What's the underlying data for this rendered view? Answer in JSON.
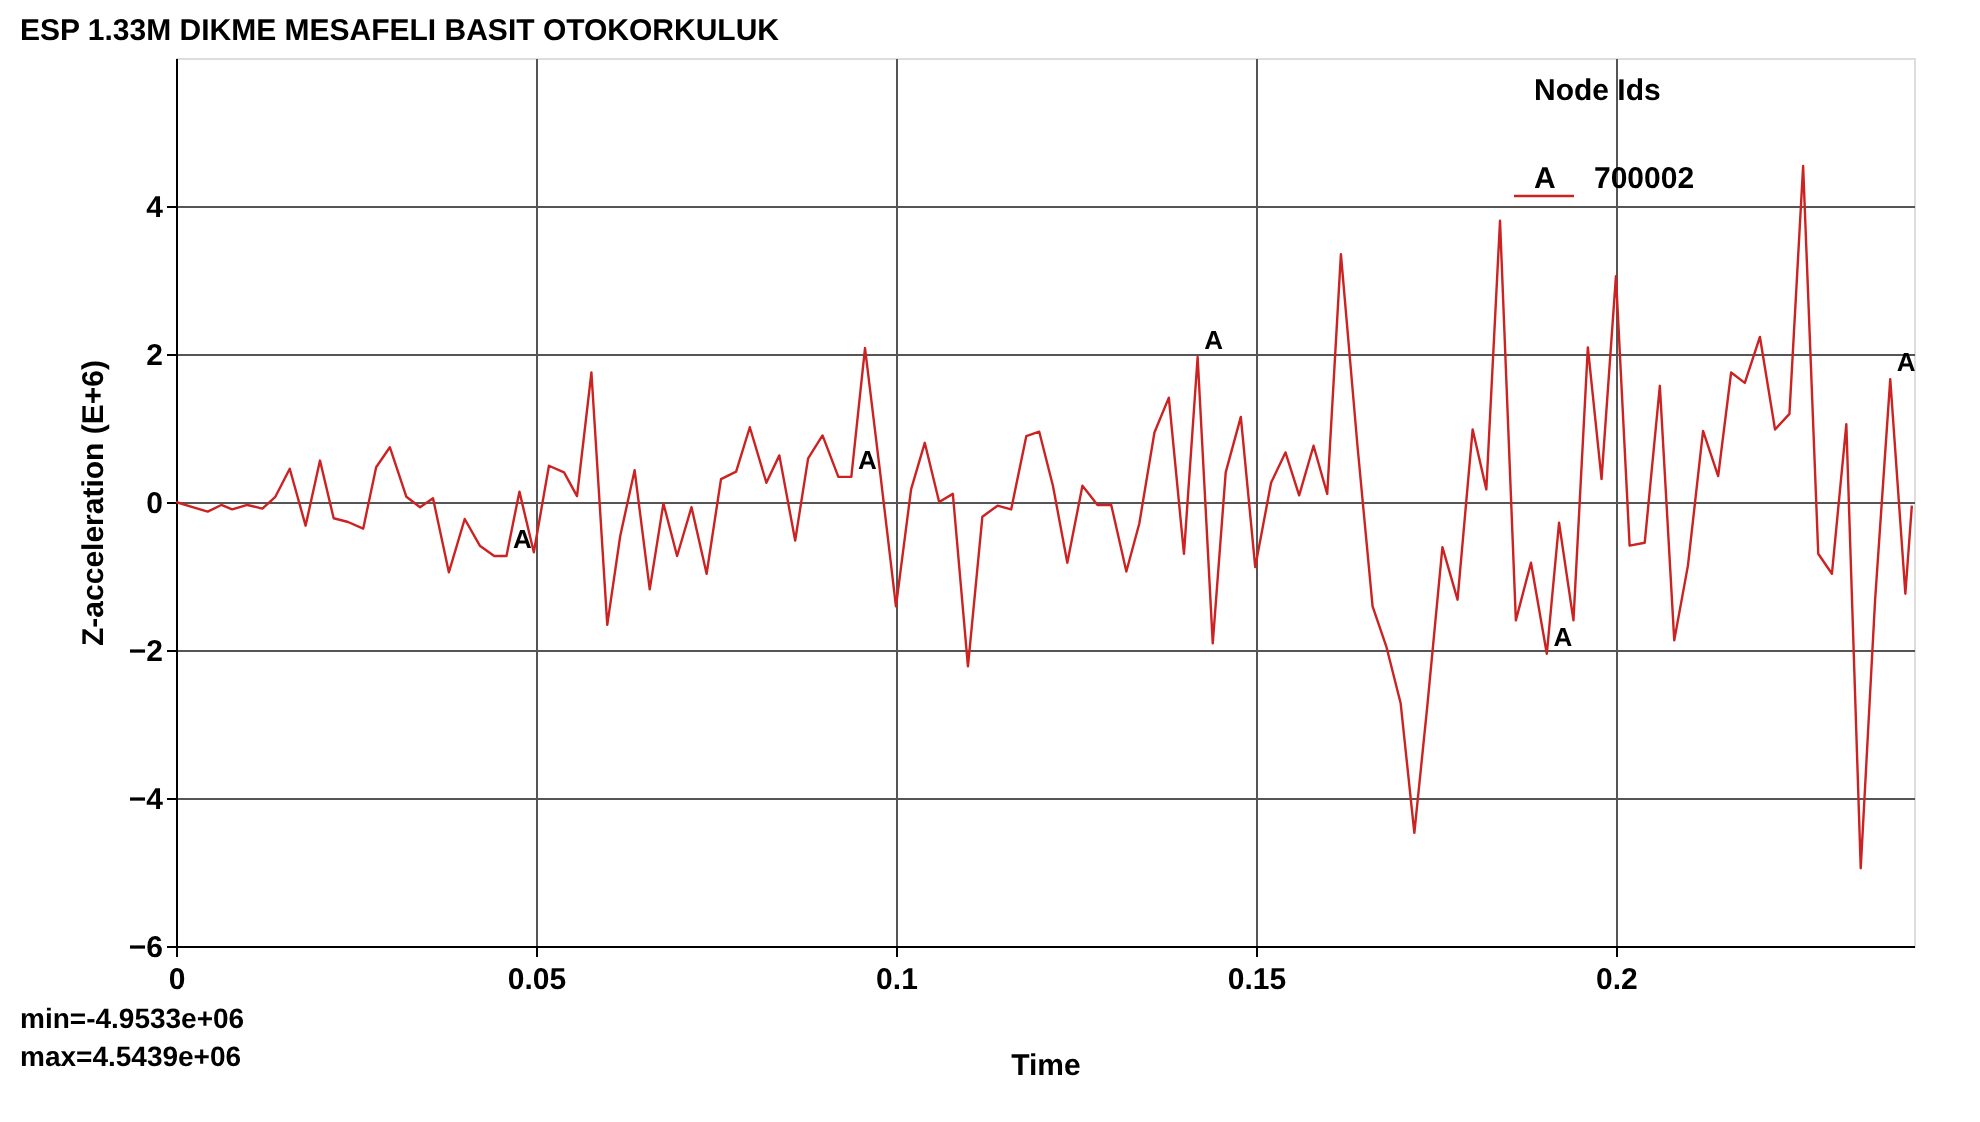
{
  "chart_data": {
    "type": "line",
    "title": "ESP 1.33M DIKME MESAFELI BASIT OTOKORKULUK",
    "xlabel": "Time",
    "ylabel": "Z-acceleration (E+6)",
    "legend_title": "Node Ids",
    "legend": "top right",
    "grid": true,
    "line_style": "solid",
    "xlim": [
      0,
      0.2414
    ],
    "ylim": [
      -6,
      6
    ],
    "xticks": [
      0,
      0.05,
      0.1,
      0.15,
      0.2
    ],
    "yticks": [
      -6,
      -4,
      -2,
      0,
      2,
      4
    ],
    "x": [
      0,
      0.0023,
      0.0044,
      0.0063,
      0.0078,
      0.0099,
      0.012,
      0.0138,
      0.0158,
      0.018,
      0.02,
      0.0219,
      0.0239,
      0.026,
      0.0278,
      0.0297,
      0.032,
      0.0339,
      0.0357,
      0.0379,
      0.0401,
      0.0422,
      0.0442,
      0.0459,
      0.0477,
      0.0497,
      0.0518,
      0.0539,
      0.0557,
      0.0577,
      0.0599,
      0.0617,
      0.0637,
      0.0658,
      0.0677,
      0.0696,
      0.0716,
      0.0737,
      0.0757,
      0.0778,
      0.0797,
      0.082,
      0.0838,
      0.086,
      0.0878,
      0.0898,
      0.092,
      0.0938,
      0.0957,
      0.0978,
      0.1,
      0.1021,
      0.104,
      0.106,
      0.1079,
      0.11,
      0.112,
      0.1141,
      0.116,
      0.1181,
      0.1199,
      0.1218,
      0.1238,
      0.1259,
      0.128,
      0.1299,
      0.132,
      0.1338,
      0.1359,
      0.1379,
      0.14,
      0.1419,
      0.144,
      0.1458,
      0.1479,
      0.1499,
      0.1521,
      0.1541,
      0.156,
      0.158,
      0.1599,
      0.1618,
      0.1641,
      0.1662,
      0.1681,
      0.1701,
      0.172,
      0.1738,
      0.1759,
      0.178,
      0.1801,
      0.182,
      0.1839,
      0.1861,
      0.1882,
      0.1904,
      0.1921,
      0.1941,
      0.1961,
      0.198,
      0.2,
      0.2019,
      0.204,
      0.2061,
      0.2081,
      0.21,
      0.2121,
      0.2142,
      0.216,
      0.2179,
      0.22,
      0.2221,
      0.2241,
      0.226,
      0.2281,
      0.23,
      0.232,
      0.234,
      0.236,
      0.2381,
      0.2402,
      0.2411
    ],
    "series": [
      {
        "name": "700002",
        "color": "#cc2222",
        "values": [
          0,
          -0.07,
          -0.13,
          -0.04,
          -0.1,
          -0.04,
          -0.09,
          0.07,
          0.45,
          -0.32,
          0.56,
          -0.22,
          -0.27,
          -0.36,
          0.47,
          0.74,
          0.07,
          -0.07,
          0.05,
          -0.95,
          -0.23,
          -0.59,
          -0.73,
          -0.73,
          0.14,
          -0.68,
          0.49,
          0.4,
          0.08,
          1.75,
          -1.66,
          -0.46,
          0.43,
          -1.18,
          -0.02,
          -0.73,
          -0.07,
          -0.97,
          0.31,
          0.41,
          1.01,
          0.26,
          0.63,
          -0.52,
          0.59,
          0.9,
          0.34,
          0.34,
          2.08,
          0.4,
          -1.41,
          0.17,
          0.8,
          0,
          0.11,
          -2.22,
          -0.2,
          -0.05,
          -0.1,
          0.89,
          0.95,
          0.22,
          -0.82,
          0.22,
          -0.04,
          -0.04,
          -0.94,
          -0.29,
          0.94,
          1.41,
          -0.7,
          1.96,
          -1.91,
          0.4,
          1.15,
          -0.88,
          0.26,
          0.67,
          0.09,
          0.76,
          0.11,
          3.35,
          0.76,
          -1.41,
          -1.95,
          -2.72,
          -4.47,
          -2.76,
          -0.61,
          -1.32,
          0.98,
          0.17,
          3.8,
          -1.6,
          -0.82,
          -2.05,
          -0.28,
          -1.6,
          2.09,
          0.31,
          3.05,
          -0.59,
          -0.55,
          1.57,
          -1.87,
          -0.86,
          0.96,
          0.35,
          1.75,
          1.61,
          2.23,
          0.98,
          1.19,
          4.54,
          -0.7,
          -0.97,
          1.05,
          -4.95,
          -1.32,
          1.66,
          -1.24,
          -0.05
        ]
      }
    ],
    "annotations": [
      {
        "text": "A",
        "x": 0.0459,
        "y": -0.73
      },
      {
        "text": "A",
        "x": 0.0938,
        "y": 0.34
      },
      {
        "text": "A",
        "x": 0.1419,
        "y": 1.96
      },
      {
        "text": "A",
        "x": 0.1904,
        "y": -2.05
      },
      {
        "text": "A",
        "x": 0.2381,
        "y": 1.66
      },
      "min=-4.9533e+06",
      "max=4.5439e+06"
    ]
  }
}
